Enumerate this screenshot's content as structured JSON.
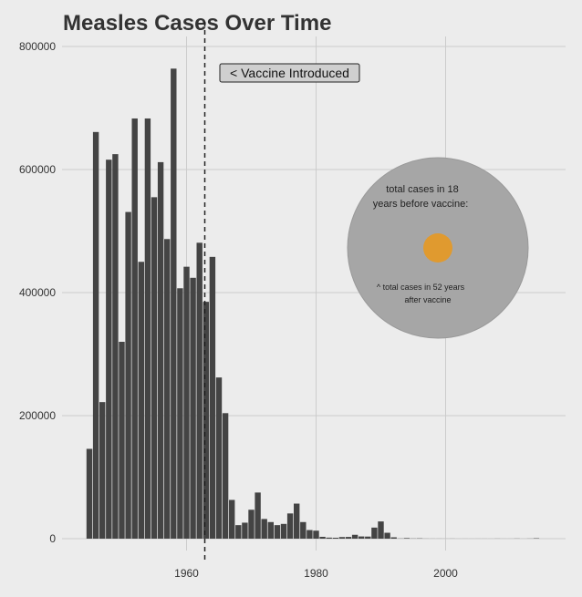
{
  "chart_data": {
    "type": "bar",
    "title": "Measles Cases Over Time",
    "xlabel": "",
    "ylabel": "",
    "xlim": [
      1942.5,
      2018
    ],
    "ylim": [
      0,
      800000
    ],
    "x_ticks": [
      1960,
      1980,
      2000
    ],
    "y_ticks": [
      0,
      200000,
      400000,
      600000,
      800000
    ],
    "grid": true,
    "x": [
      1945,
      1946,
      1947,
      1948,
      1949,
      1950,
      1951,
      1952,
      1953,
      1954,
      1955,
      1956,
      1957,
      1958,
      1959,
      1960,
      1961,
      1962,
      1963,
      1964,
      1965,
      1966,
      1967,
      1968,
      1969,
      1970,
      1971,
      1972,
      1973,
      1974,
      1975,
      1976,
      1977,
      1978,
      1979,
      1980,
      1981,
      1982,
      1983,
      1984,
      1985,
      1986,
      1987,
      1988,
      1989,
      1990,
      1991,
      1992,
      1993,
      1994,
      1995,
      1996,
      1997,
      1998,
      1999,
      2000,
      2001,
      2002,
      2003,
      2004,
      2005,
      2006,
      2007,
      2008,
      2009,
      2010,
      2011,
      2012,
      2013,
      2014
    ],
    "values": [
      146000,
      661000,
      222000,
      616000,
      625000,
      320000,
      531000,
      683000,
      450000,
      683000,
      555000,
      612000,
      487000,
      764000,
      407000,
      442000,
      424000,
      481000,
      385000,
      458000,
      262000,
      204000,
      63000,
      22000,
      26000,
      47000,
      75000,
      32000,
      27000,
      22000,
      24000,
      41000,
      57000,
      27000,
      14000,
      13000,
      3000,
      1700,
      1500,
      2600,
      2800,
      6300,
      3600,
      3400,
      18000,
      28000,
      9600,
      2200,
      300,
      960,
      300,
      500,
      140,
      100,
      100,
      90,
      120,
      40,
      60,
      40,
      70,
      60,
      40,
      140,
      70,
      60,
      220,
      50,
      190,
      670
    ],
    "vaccine_year": 1963,
    "annotations": {
      "vaccine_label": "< Vaccine Introduced",
      "circle_text_1": "total cases in 18",
      "circle_text_2": "years before vaccine:",
      "circle_text_3": "^ total cases in 52 years",
      "circle_text_4": "after vaccine"
    },
    "colors": {
      "bars": "#444444",
      "background": "#ececec",
      "grid": "#cccccc",
      "big_circle": "#a6a6a6",
      "small_circle": "#e09a2f"
    }
  }
}
